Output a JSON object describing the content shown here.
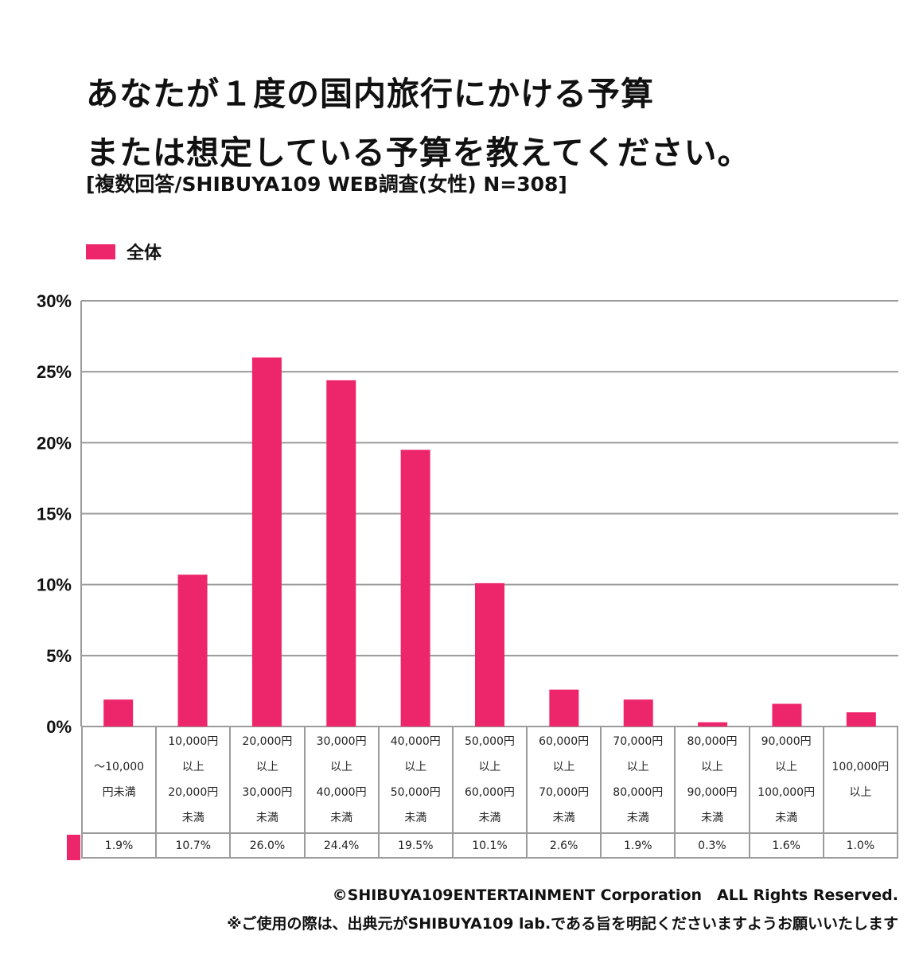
{
  "header": {
    "title_line1": "あなたが１度の国内旅行にかける予算",
    "title_line2": "または想定している予算を教えてください。",
    "subtitle": "[複数回答/SHIBUYA109 WEB調査(女性) N=308]"
  },
  "colors": {
    "series": "#ed266b",
    "grid": "#9b9b9b"
  },
  "chart_data": {
    "type": "bar",
    "title": "あなたが１度の国内旅行にかける予算または想定している予算を教えてください。",
    "subtitle": "[複数回答/SHIBUYA109 WEB調査(女性) N=308]",
    "xlabel": "",
    "ylabel": "",
    "ylim": [
      0,
      30
    ],
    "yticks": [
      "0%",
      "5%",
      "10%",
      "15%",
      "20%",
      "25%",
      "30%"
    ],
    "grid": true,
    "legend": {
      "position": "top-left",
      "entries": [
        "全体"
      ]
    },
    "categories": [
      [
        "～10,000",
        "円未満"
      ],
      [
        "10,000円",
        "以上",
        "20,000円",
        "未満"
      ],
      [
        "20,000円",
        "以上",
        "30,000円",
        "未満"
      ],
      [
        "30,000円",
        "以上",
        "40,000円",
        "未満"
      ],
      [
        "40,000円",
        "以上",
        "50,000円",
        "未満"
      ],
      [
        "50,000円",
        "以上",
        "60,000円",
        "未満"
      ],
      [
        "60,000円",
        "以上",
        "70,000円",
        "未満"
      ],
      [
        "70,000円",
        "以上",
        "80,000円",
        "未満"
      ],
      [
        "80,000円",
        "以上",
        "90,000円",
        "未満"
      ],
      [
        "90,000円",
        "以上",
        "100,000円",
        "未満"
      ],
      [
        "100,000円",
        "以上"
      ]
    ],
    "series": [
      {
        "name": "全体",
        "values": [
          1.9,
          10.7,
          26.0,
          24.4,
          19.5,
          10.1,
          2.6,
          1.9,
          0.3,
          1.6,
          1.0
        ]
      }
    ],
    "value_labels": [
      "1.9%",
      "10.7%",
      "26.0%",
      "24.4%",
      "19.5%",
      "10.1%",
      "2.6%",
      "1.9%",
      "0.3%",
      "1.6%",
      "1.0%"
    ]
  },
  "footer": {
    "copyright": "©SHIBUYA109ENTERTAINMENT Corporation　ALL Rights Reserved.",
    "note": "※ご使用の際は、出典元がSHIBUYA109 lab.である旨を明記くださいますようお願いいたします"
  }
}
